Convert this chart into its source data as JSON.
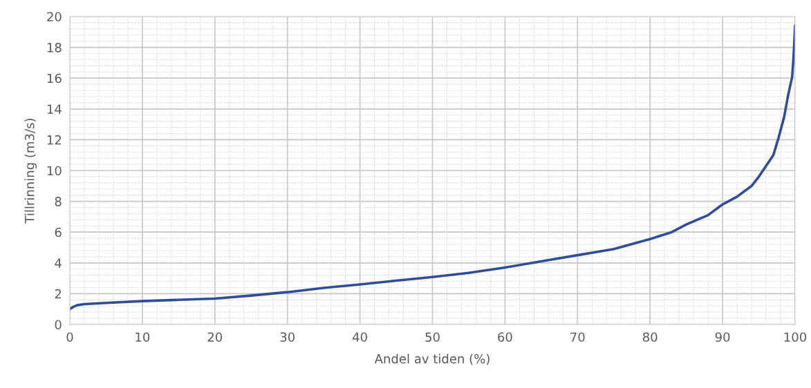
{
  "chart_data": {
    "type": "line",
    "xlabel": "Andel av tiden (%)",
    "ylabel": "Tillrinning (m3/s)",
    "series": [
      {
        "color": "#2e4e9c",
        "x": [
          0,
          0.5,
          1,
          2,
          5,
          10,
          15,
          20,
          25,
          30,
          35,
          40,
          45,
          50,
          55,
          60,
          65,
          70,
          75,
          80,
          83,
          85,
          88,
          90,
          92,
          94,
          95,
          96,
          97,
          97.7,
          98.5,
          99,
          99.6,
          99.8,
          100
        ],
        "values": [
          1.0,
          1.15,
          1.25,
          1.32,
          1.4,
          1.52,
          1.6,
          1.68,
          1.88,
          2.1,
          2.38,
          2.6,
          2.85,
          3.08,
          3.35,
          3.7,
          4.1,
          4.5,
          4.9,
          5.55,
          6.0,
          6.5,
          7.1,
          7.8,
          8.3,
          9.0,
          9.6,
          10.3,
          11.0,
          12.1,
          13.5,
          14.8,
          16.1,
          17.5,
          19.4
        ]
      }
    ],
    "xlim": [
      0,
      100
    ],
    "xticks": [
      0,
      10,
      20,
      30,
      40,
      50,
      60,
      70,
      80,
      90,
      100
    ],
    "ylim": [
      0,
      20
    ],
    "yticks": [
      0,
      2,
      4,
      6,
      8,
      10,
      12,
      14,
      16,
      18,
      20
    ],
    "grid": true,
    "marker": "none",
    "line_style": "solid"
  }
}
